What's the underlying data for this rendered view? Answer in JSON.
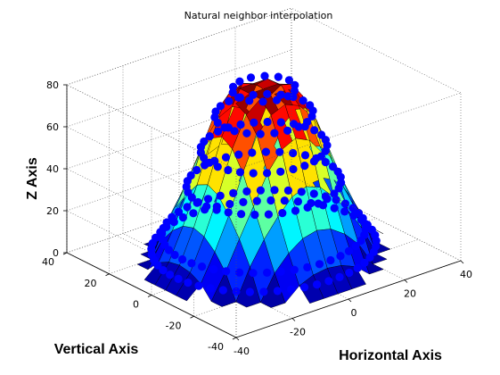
{
  "chart_data": {
    "type": "surface3d",
    "title": "Natural neighbor interpolation",
    "xlabel": "Horizontal Axis",
    "ylabel": "Vertical Axis",
    "zlabel": "Z Axis",
    "xlim": [
      -40,
      40
    ],
    "ylim": [
      -40,
      40
    ],
    "zlim": [
      0,
      80
    ],
    "x_ticks": [
      "-40",
      "-20",
      "0",
      "20",
      "40"
    ],
    "y_ticks": [
      "-40",
      "-20",
      "0",
      "20",
      "40"
    ],
    "z_ticks": [
      "0",
      "20",
      "40",
      "60",
      "80"
    ],
    "grid": true,
    "box": true,
    "colormap": "jet",
    "marker_color": "#0000ff",
    "ring_sample_points": [
      {
        "radius": 32,
        "z": 5
      },
      {
        "radius": 29,
        "z": 12
      },
      {
        "radius": 22,
        "z": 35
      },
      {
        "radius": 18,
        "z": 52
      },
      {
        "radius": 14,
        "z": 68
      },
      {
        "radius": 9,
        "z": 80
      }
    ]
  },
  "colors": {
    "markers": "#0000ff",
    "grid": "#555555"
  }
}
